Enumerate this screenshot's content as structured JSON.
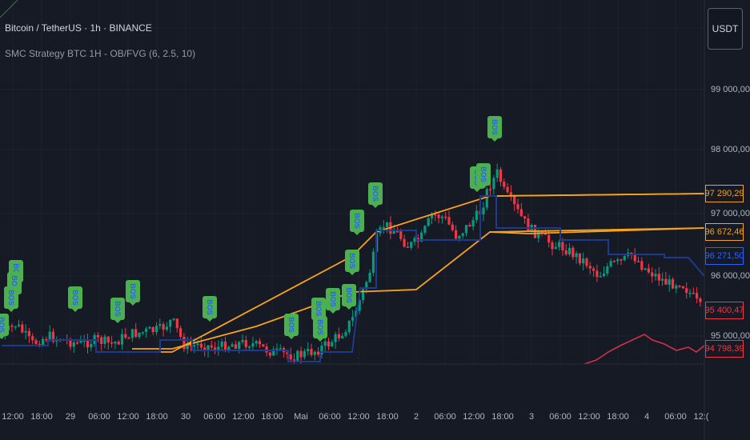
{
  "header": {
    "symbol_title": "Bitcoin / TetherUS · 1h · BINANCE",
    "indicator_title": "SMC Strategy BTC 1H - OB/FVG (6, 2.5, 10)",
    "currency_button": "USDT"
  },
  "price_axis": {
    "ticks": [
      "99 000,00",
      "98 000,00",
      "97 000,00",
      "96 000,00",
      "95 000,00"
    ],
    "badges": [
      {
        "label": "97 290,29",
        "color": "#f7a21b"
      },
      {
        "label": "96 672,46",
        "color": "#f7a21b"
      },
      {
        "label": "96 271,50",
        "color": "#2962ff"
      },
      {
        "label": "95 400,47",
        "color": "#f23645"
      },
      {
        "label": "94 798,39",
        "color": "#f23645"
      }
    ]
  },
  "time_axis": {
    "labels": [
      "12:00",
      "18:00",
      "29",
      "06:00",
      "12:00",
      "18:00",
      "30",
      "06:00",
      "12:00",
      "18:00",
      "Mai",
      "06:00",
      "12:00",
      "18:00",
      "2",
      "06:00",
      "12:00",
      "18:00",
      "3",
      "06:00",
      "12:00",
      "18:00",
      "4",
      "06:00",
      "12:("
    ]
  },
  "markers": {
    "bos_label": "BOS",
    "count": 19
  },
  "colors": {
    "up": "#089981",
    "down": "#f23645",
    "orange": "#f7a21b",
    "blue": "#1e3a8a",
    "bos_bg": "#4caf50"
  }
}
